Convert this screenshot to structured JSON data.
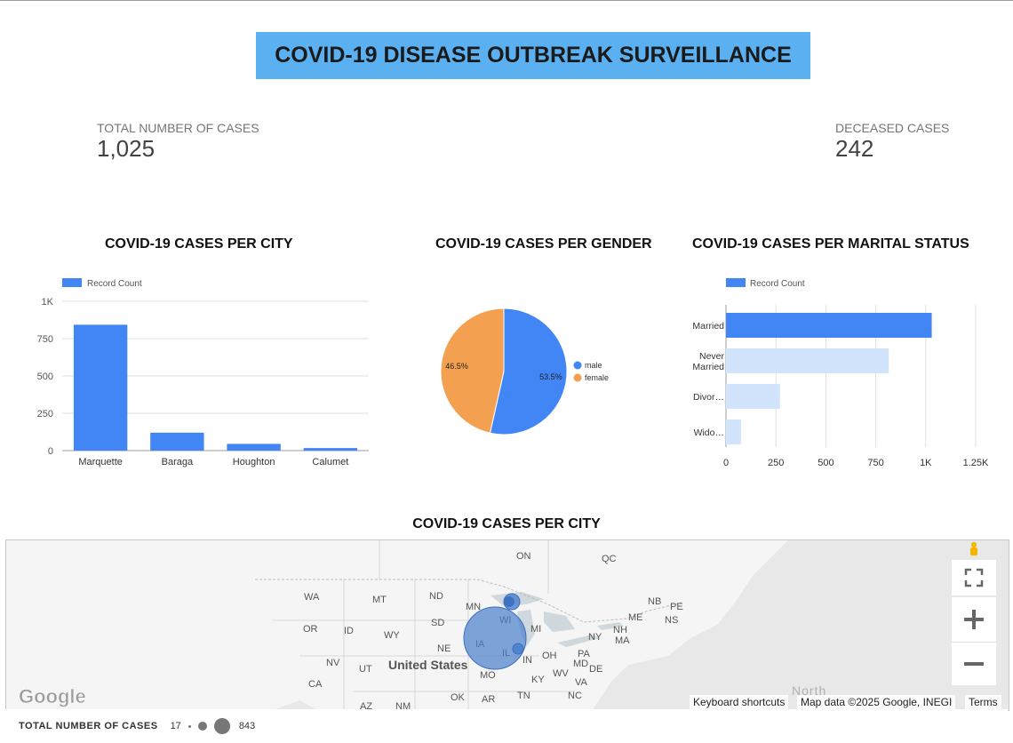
{
  "header": {
    "title": "COVID-19 DISEASE OUTBREAK SURVEILLANCE"
  },
  "kpis": {
    "total": {
      "label": "TOTAL NUMBER OF CASES",
      "value": "1,025"
    },
    "deceased": {
      "label": "DECEASED CASES",
      "value": "242"
    }
  },
  "colors": {
    "banner": "#5ab0f1",
    "blue": "#4285f4",
    "orange": "#f4a051",
    "light_blue": "#d2e3fc"
  },
  "chart_data": [
    {
      "type": "bar",
      "title": "COVID-19 CASES PER CITY",
      "legend": "Record Count",
      "categories": [
        "Marquette",
        "Baraga",
        "Houghton",
        "Calumet"
      ],
      "values": [
        843,
        120,
        45,
        17
      ],
      "ylim": [
        0,
        1000
      ],
      "yticks": [
        "0",
        "250",
        "500",
        "750",
        "1K"
      ],
      "ytick_values": [
        0,
        250,
        500,
        750,
        1000
      ],
      "grid": true,
      "legend_position": "top-left"
    },
    {
      "type": "pie",
      "title": "COVID-19 CASES PER GENDER",
      "labels": [
        "male",
        "female"
      ],
      "values": [
        53.5,
        46.5
      ],
      "value_labels": [
        "53.5%",
        "46.5%"
      ],
      "legend_position": "right"
    },
    {
      "type": "bar",
      "orientation": "horizontal",
      "title": "COVID-19 CASES PER MARITAL STATUS",
      "legend": "Record Count",
      "categories": [
        "Married",
        "Never Married",
        "Divor…",
        "Wido…"
      ],
      "values": [
        1030,
        815,
        270,
        75
      ],
      "xlim": [
        0,
        1250
      ],
      "xticks": [
        "0",
        "250",
        "500",
        "750",
        "1K",
        "1.25K"
      ],
      "xtick_values": [
        0,
        250,
        500,
        750,
        1000,
        1250
      ],
      "grid": true,
      "legend_position": "top-left"
    }
  ],
  "map": {
    "title": "COVID-19 CASES PER CITY",
    "google_label": "Google",
    "country_label": "United States",
    "state_labels": [
      "WA",
      "MT",
      "ND",
      "MN",
      "OR",
      "ID",
      "WY",
      "SD",
      "WI",
      "MI",
      "NE",
      "IA",
      "IL",
      "IN",
      "OH",
      "PA",
      "NY",
      "NV",
      "UT",
      "CA",
      "MO",
      "KY",
      "WV",
      "VA",
      "MD",
      "DE",
      "NH",
      "MA",
      "ME",
      "OK",
      "AR",
      "TN",
      "NC",
      "AZ",
      "NM"
    ],
    "province_labels": [
      "ON",
      "QC",
      "NB",
      "PE",
      "NS"
    ],
    "ocean_label": "North",
    "attribution": {
      "shortcuts": "Keyboard shortcuts",
      "data": "Map data ©2025 Google, INEGI",
      "terms": "Terms"
    },
    "controls": [
      "pegman-icon",
      "fullscreen-icon",
      "zoom-in-icon",
      "zoom-out-icon"
    ],
    "legend": {
      "label": "TOTAL NUMBER OF CASES",
      "min": "17",
      "max": "843"
    }
  }
}
